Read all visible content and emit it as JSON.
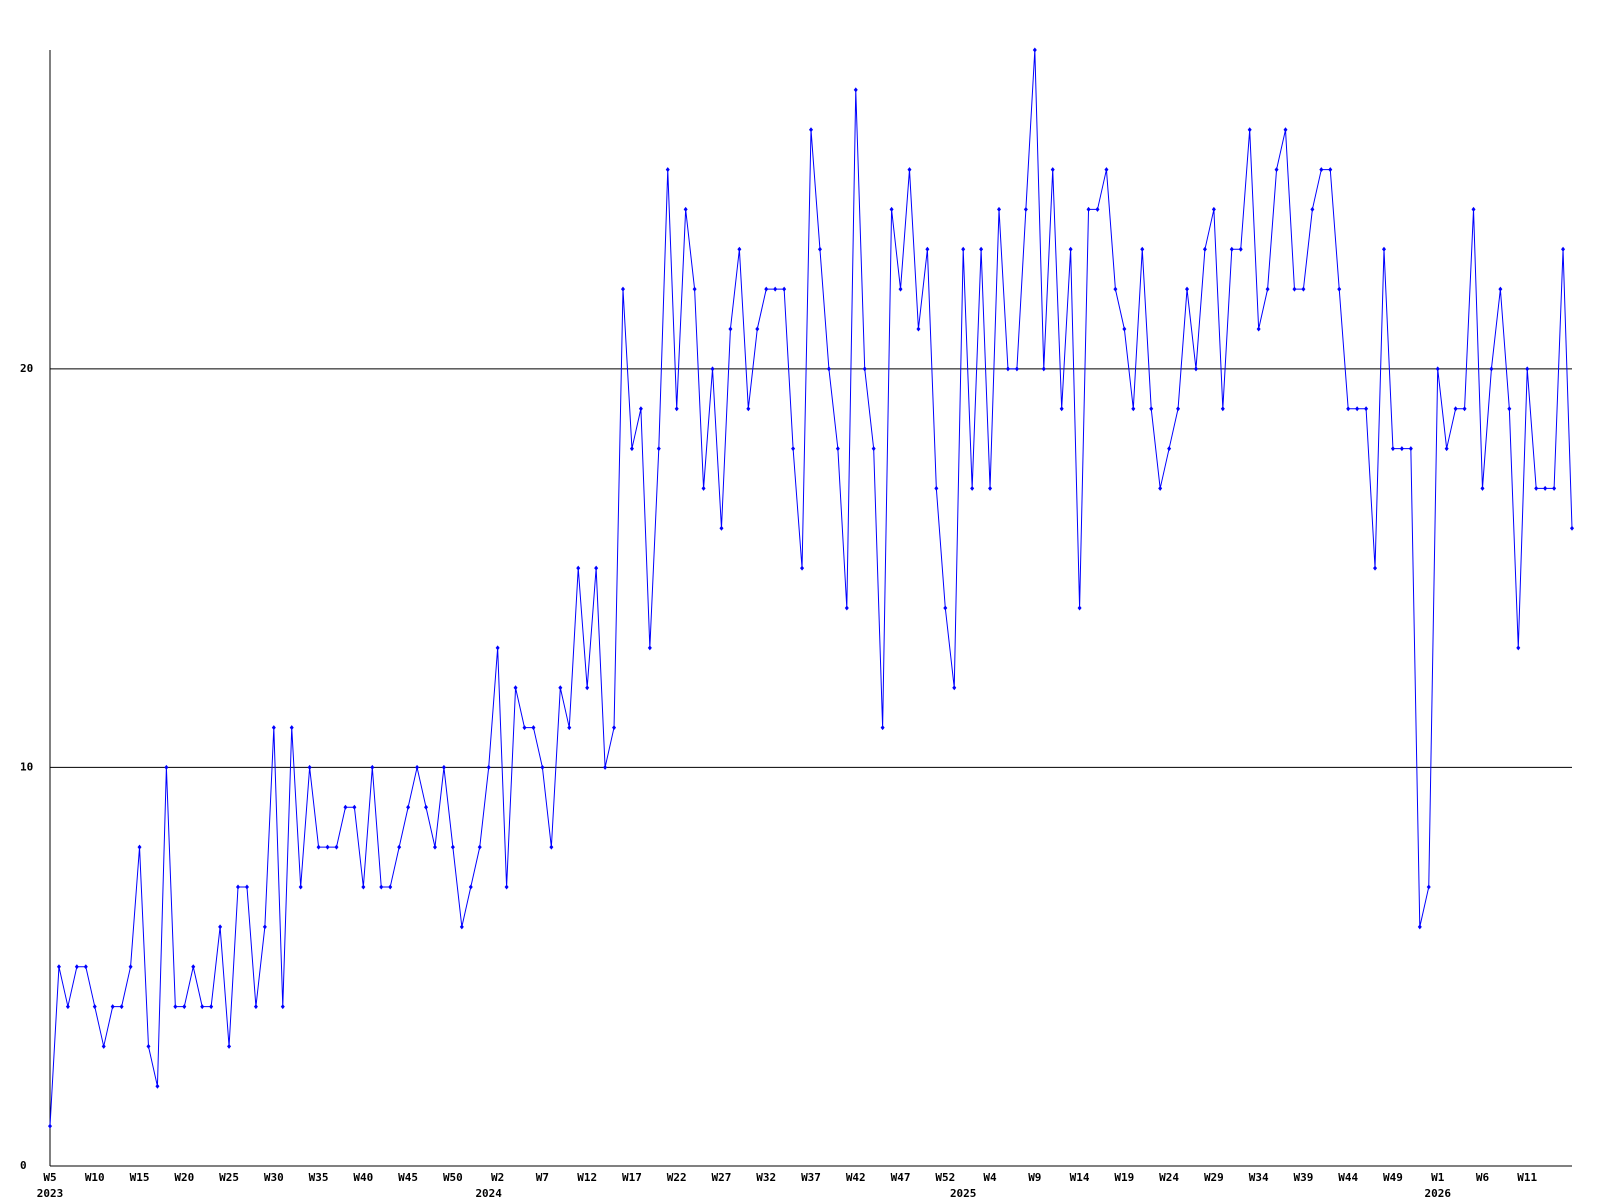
{
  "chart_data": {
    "type": "line",
    "categories": [
      "W5",
      null,
      null,
      null,
      null,
      "W10",
      null,
      null,
      null,
      null,
      "W15",
      null,
      null,
      null,
      null,
      "W20",
      null,
      null,
      null,
      null,
      "W25",
      null,
      null,
      null,
      null,
      "W30",
      null,
      null,
      null,
      null,
      "W35",
      null,
      null,
      null,
      null,
      "W40",
      null,
      null,
      null,
      null,
      "W45",
      null,
      null,
      null,
      null,
      "W50",
      null,
      null,
      null,
      null,
      "W2",
      null,
      null,
      null,
      null,
      "W7",
      null,
      null,
      null,
      null,
      "W12",
      null,
      null,
      null,
      null,
      "W17",
      null,
      null,
      null,
      null,
      "W22",
      null,
      null,
      null,
      null,
      "W27",
      null,
      null,
      null,
      null,
      "W32",
      null,
      null,
      null,
      null,
      "W37",
      null,
      null,
      null,
      null,
      "W42",
      null,
      null,
      null,
      null,
      "W47",
      null,
      null,
      null,
      null,
      "W52",
      null,
      null,
      null,
      null,
      "W4",
      null,
      null,
      null,
      null,
      "W9",
      null,
      null,
      null,
      null,
      "W14",
      null,
      null,
      null,
      null,
      "W19",
      null,
      null,
      null,
      null,
      "W24",
      null,
      null,
      null,
      null,
      "W29",
      null,
      null,
      null,
      null,
      "W34",
      null,
      null,
      null,
      null,
      "W39",
      null,
      null,
      null,
      null,
      "W44",
      null,
      null,
      null,
      null,
      "W49",
      null,
      null,
      null,
      null,
      "W1",
      null,
      null,
      null,
      null,
      "W6",
      null,
      null,
      null,
      null,
      "W11",
      null,
      null,
      null,
      null,
      null
    ],
    "x_years": [
      "2023",
      null,
      null,
      null,
      null,
      null,
      null,
      null,
      null,
      null,
      null,
      null,
      null,
      null,
      null,
      null,
      null,
      null,
      null,
      null,
      null,
      null,
      null,
      null,
      null,
      null,
      null,
      null,
      null,
      null,
      null,
      null,
      null,
      null,
      null,
      null,
      null,
      null,
      null,
      null,
      null,
      null,
      null,
      null,
      null,
      null,
      null,
      null,
      null,
      "2024",
      null,
      null,
      null,
      null,
      null,
      null,
      null,
      null,
      null,
      null,
      null,
      null,
      null,
      null,
      null,
      null,
      null,
      null,
      null,
      null,
      null,
      null,
      null,
      null,
      null,
      null,
      null,
      null,
      null,
      null,
      null,
      null,
      null,
      null,
      null,
      null,
      null,
      null,
      null,
      null,
      null,
      null,
      null,
      null,
      null,
      null,
      null,
      null,
      null,
      null,
      null,
      null,
      "2025",
      null,
      null,
      null,
      null,
      null,
      null,
      null,
      null,
      null,
      null,
      null,
      null,
      null,
      null,
      null,
      null,
      null,
      null,
      null,
      null,
      null,
      null,
      null,
      null,
      null,
      null,
      null,
      null,
      null,
      null,
      null,
      null,
      null,
      null,
      null,
      null,
      null,
      null,
      null,
      null,
      null,
      null,
      null,
      null,
      null,
      null,
      null,
      null,
      null,
      null,
      null,
      null,
      "2026",
      null,
      null,
      null,
      null,
      null,
      null,
      null,
      null,
      null,
      null,
      null,
      null,
      null,
      null,
      null
    ],
    "series": [
      {
        "color": "#0000ff",
        "values": [
          1,
          5,
          4,
          5,
          5,
          4,
          3,
          4,
          4,
          5,
          8,
          3,
          2,
          10,
          4,
          4,
          5,
          4,
          4,
          6,
          3,
          7,
          7,
          4,
          6,
          11,
          4,
          11,
          7,
          10,
          8,
          8,
          8,
          9,
          9,
          7,
          10,
          7,
          7,
          8,
          9,
          10,
          9,
          8,
          10,
          8,
          6,
          7,
          8,
          10,
          13,
          7,
          12,
          11,
          11,
          10,
          8,
          12,
          11,
          15,
          12,
          15,
          10,
          11,
          22,
          18,
          19,
          13,
          18,
          25,
          19,
          24,
          22,
          17,
          20,
          16,
          21,
          23,
          19,
          21,
          22,
          22,
          22,
          18,
          15,
          26,
          23,
          20,
          18,
          14,
          27,
          20,
          18,
          11,
          24,
          22,
          25,
          21,
          23,
          17,
          14,
          12,
          23,
          17,
          23,
          17,
          24,
          20,
          20,
          24,
          28,
          20,
          25,
          19,
          23,
          14,
          24,
          24,
          25,
          22,
          21,
          19,
          23,
          19,
          17,
          18,
          19,
          22,
          20,
          23,
          24,
          19,
          23,
          23,
          26,
          21,
          22,
          25,
          26,
          22,
          22,
          24,
          25,
          25,
          22,
          19,
          19,
          19,
          15,
          23,
          18,
          18,
          18,
          6,
          7,
          20,
          18,
          19,
          19,
          24,
          17,
          20,
          22,
          19,
          13,
          20,
          17,
          17,
          17,
          23,
          16
        ]
      }
    ],
    "ylim": [
      0,
      28
    ],
    "yticks": [
      0,
      10,
      20
    ],
    "grid": true
  }
}
